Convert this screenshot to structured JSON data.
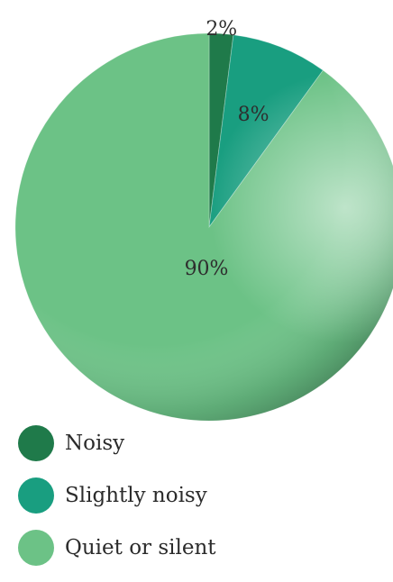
{
  "chart_data": {
    "type": "pie",
    "categories": [
      "Noisy",
      "Slightly noisy",
      "Quiet or silent"
    ],
    "values": [
      2,
      8,
      90
    ],
    "labels": [
      "2%",
      "8%",
      "90%"
    ],
    "colors": [
      "#1f7a4a",
      "#199e80",
      "#6cc286"
    ],
    "legend_position": "bottom-left",
    "title": "",
    "unit": "%"
  },
  "legend": {
    "items": [
      {
        "label": "Noisy",
        "color": "#1f7a4a"
      },
      {
        "label": "Slightly noisy",
        "color": "#199e80"
      },
      {
        "label": "Quiet or silent",
        "color": "#6cc286"
      }
    ]
  }
}
